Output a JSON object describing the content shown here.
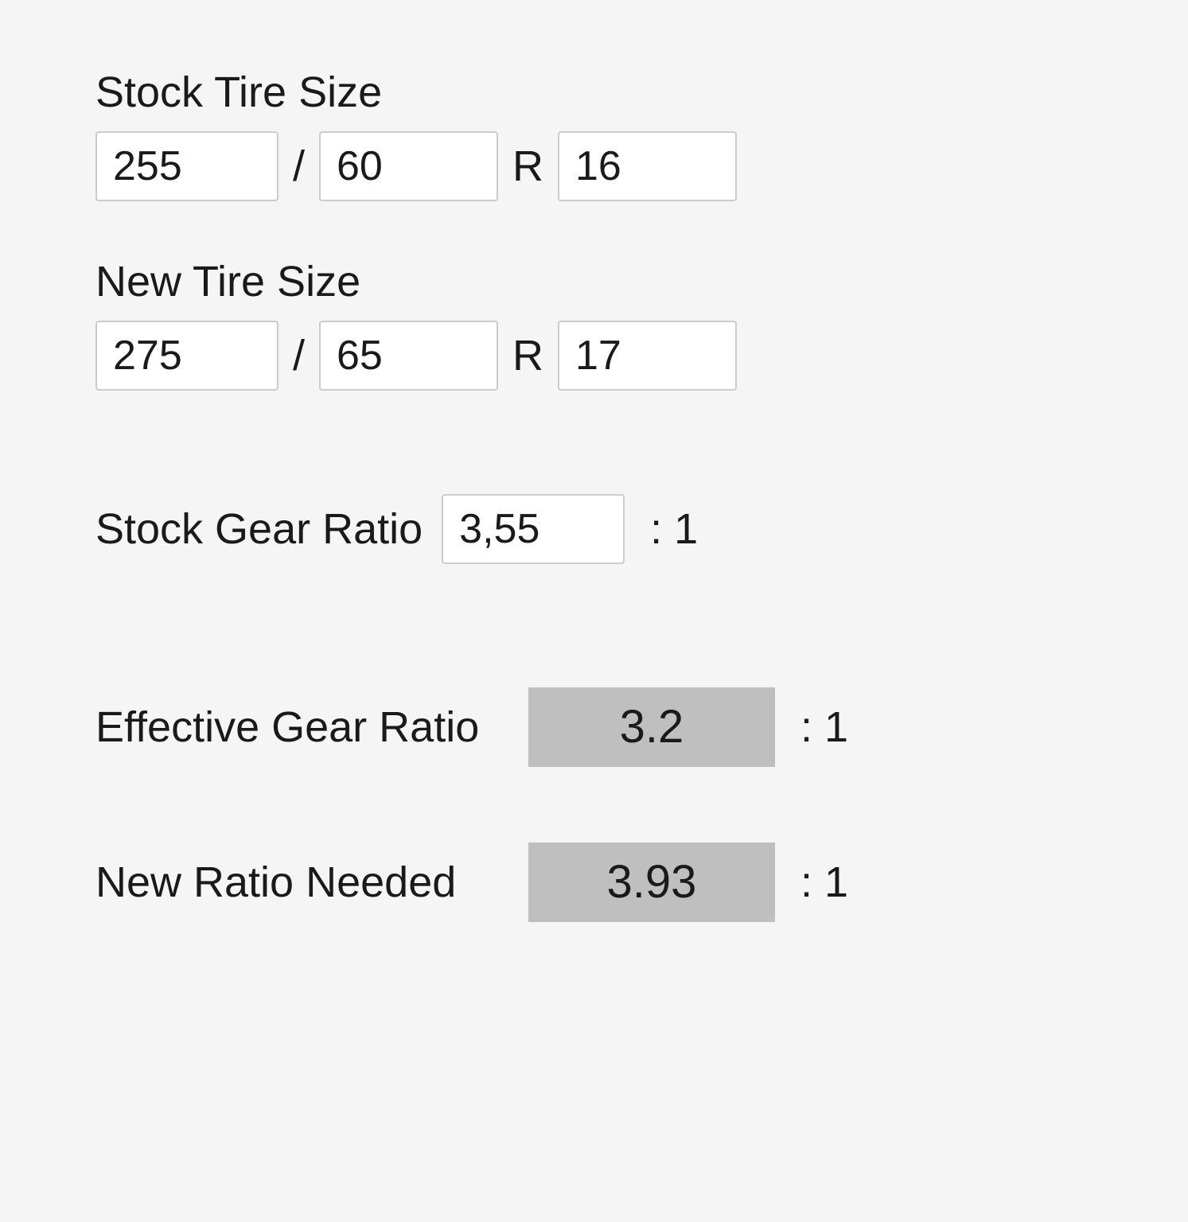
{
  "stock_tire": {
    "label": "Stock Tire Size",
    "width": "255",
    "aspect": "60",
    "rim": "16",
    "sep_slash": "/",
    "sep_r": "R"
  },
  "new_tire": {
    "label": "New Tire Size",
    "width": "275",
    "aspect": "65",
    "rim": "17",
    "sep_slash": "/",
    "sep_r": "R"
  },
  "stock_ratio": {
    "label": "Stock Gear Ratio",
    "value": "3,55",
    "suffix": ": 1"
  },
  "effective_ratio": {
    "label": "Effective Gear Ratio",
    "value": "3.2",
    "suffix": ": 1"
  },
  "new_ratio": {
    "label": "New Ratio Needed",
    "value": "3.93",
    "suffix": ": 1"
  },
  "style": {
    "background_color": "#f5f5f5",
    "input_bg": "#ffffff",
    "input_border": "#cccccc",
    "output_bg": "#bfbfbf",
    "text_color": "#1a1a1a",
    "label_fontsize": 54,
    "input_fontsize": 52,
    "output_fontsize": 58
  }
}
